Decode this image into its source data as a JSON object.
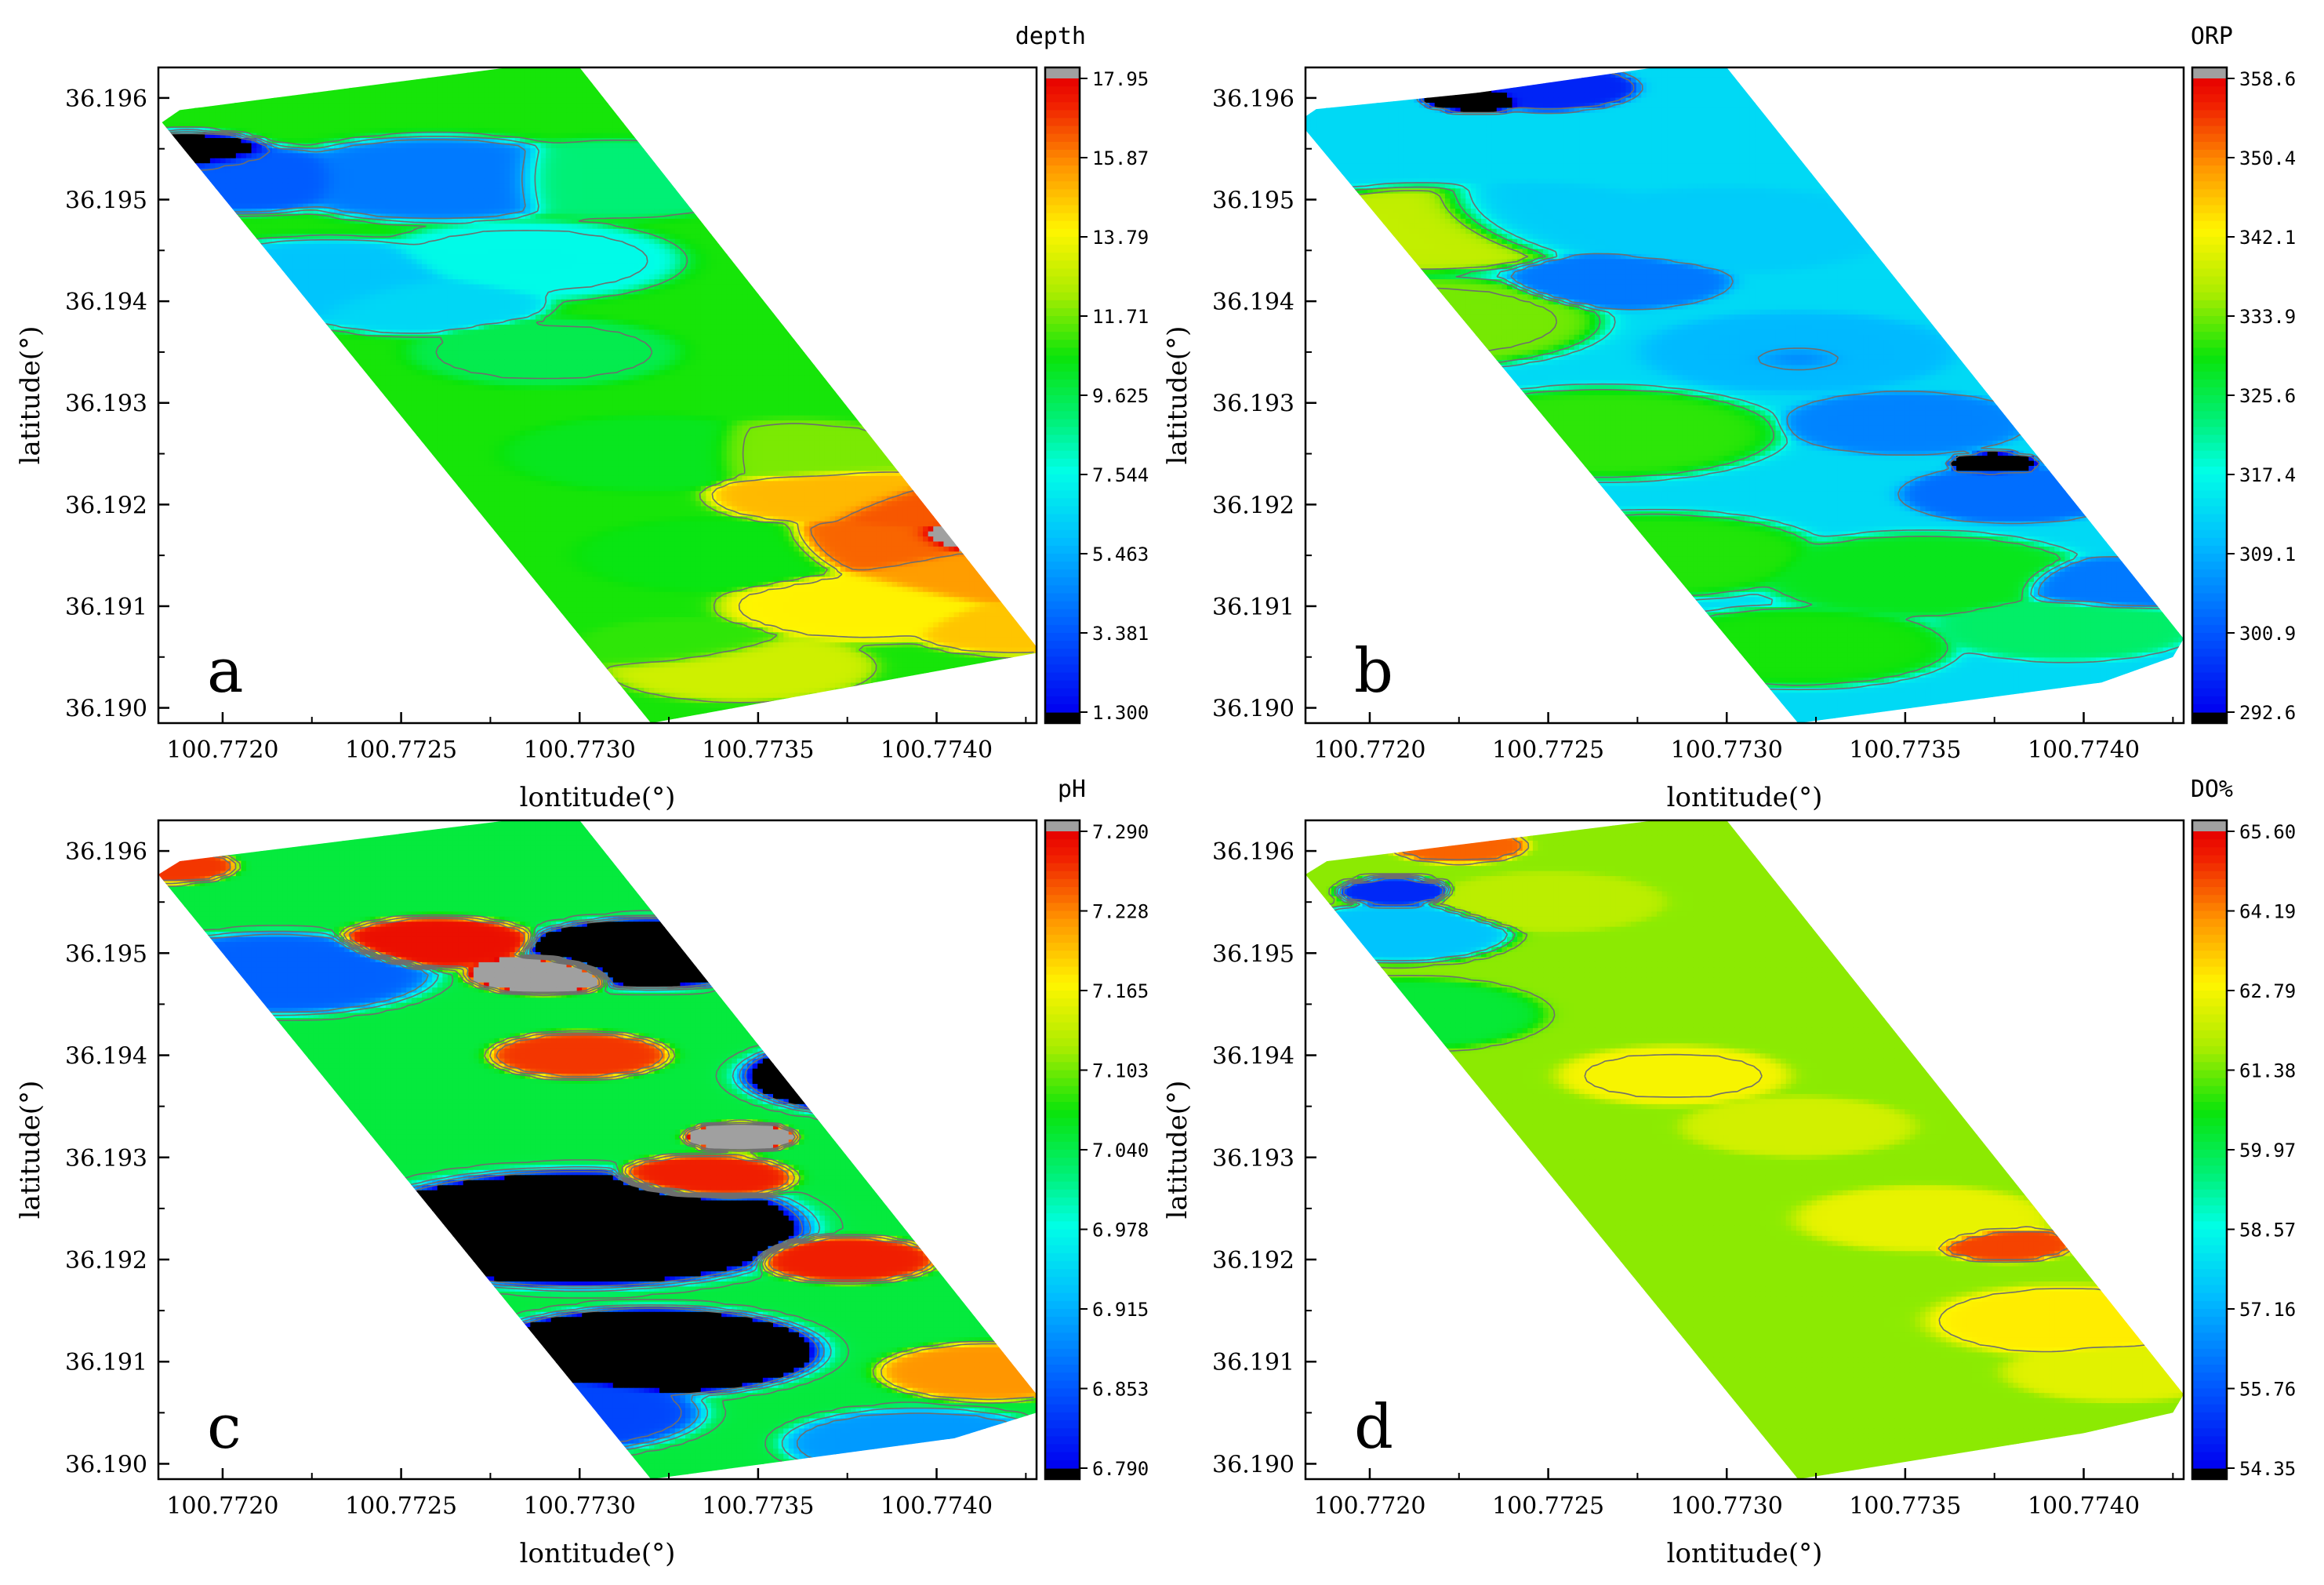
{
  "figure": {
    "colors": {
      "frame": "#000000",
      "contour": "#6e6e6e",
      "below": "#000000",
      "above": "#a0a0a0"
    },
    "x_axis_label": "lontitude(°)",
    "y_axis_label": "latitude(°)"
  },
  "chart_data": [
    {
      "type": "heatmap",
      "panel_label": "a",
      "title": "depth",
      "xlabel": "lontitude(°)",
      "ylabel": "latitude(°)",
      "xlim": [
        100.77182,
        100.77428
      ],
      "ylim": [
        36.18985,
        36.1963
      ],
      "x_ticks": [
        "100.7720",
        "100.7725",
        "100.7730",
        "100.7735",
        "100.7740"
      ],
      "y_ticks": [
        "36.196",
        "36.195",
        "36.194",
        "36.193",
        "36.192",
        "36.191",
        "36.190"
      ],
      "colorbar_ticks": [
        "17.95",
        "15.87",
        "13.79",
        "11.71",
        "9.625",
        "7.544",
        "5.463",
        "3.381",
        "1.300"
      ],
      "colorbar_range": [
        1.3,
        17.95
      ],
      "region": [
        [
          100.77183,
          36.19576
        ],
        [
          100.77188,
          36.19588
        ],
        [
          100.7728,
          36.1963
        ],
        [
          100.773,
          36.1963
        ],
        [
          100.77428,
          36.1906
        ],
        [
          100.77428,
          36.19054
        ],
        [
          100.7732,
          36.18985
        ]
      ],
      "field": [
        {
          "x": 100.7719,
          "y": 36.19545,
          "value": 1.0,
          "r": 8e-05
        },
        {
          "x": 100.77205,
          "y": 36.1952,
          "value": 3.5,
          "r": 0.00012
        },
        {
          "x": 100.7726,
          "y": 36.1952,
          "value": 4.2,
          "r": 0.00015
        },
        {
          "x": 100.7723,
          "y": 36.1942,
          "value": 6.0,
          "r": 0.00015
        },
        {
          "x": 100.77255,
          "y": 36.194,
          "value": 6.5,
          "r": 0.00012
        },
        {
          "x": 100.77285,
          "y": 36.1944,
          "value": 7.5,
          "r": 0.00014
        },
        {
          "x": 100.7731,
          "y": 36.1952,
          "value": 9.0,
          "r": 0.00014
        },
        {
          "x": 100.7729,
          "y": 36.1935,
          "value": 9.6,
          "r": 0.00012
        },
        {
          "x": 100.7732,
          "y": 36.1925,
          "value": 10.3,
          "r": 0.00013
        },
        {
          "x": 100.7734,
          "y": 36.1915,
          "value": 10.5,
          "r": 0.00013
        },
        {
          "x": 100.7733,
          "y": 36.1906,
          "value": 11.0,
          "r": 0.0001
        },
        {
          "x": 100.7736,
          "y": 36.1925,
          "value": 11.8,
          "r": 0.00012
        },
        {
          "x": 100.77345,
          "y": 36.1904,
          "value": 13.0,
          "r": 0.00012
        },
        {
          "x": 100.7738,
          "y": 36.191,
          "value": 14.0,
          "r": 0.00013
        },
        {
          "x": 100.7737,
          "y": 36.1921,
          "value": 15.0,
          "r": 0.00011
        },
        {
          "x": 100.77385,
          "y": 36.1916,
          "value": 16.3,
          "r": 0.00011
        },
        {
          "x": 100.77395,
          "y": 36.19195,
          "value": 16.5,
          "r": 0.0001
        },
        {
          "x": 100.7741,
          "y": 36.1913,
          "value": 15.5,
          "r": 0.00012
        },
        {
          "x": 100.77422,
          "y": 36.1908,
          "value": 14.8,
          "r": 0.0001
        },
        {
          "x": 100.77408,
          "y": 36.19168,
          "value": 19.0,
          "r": 7e-05
        }
      ]
    },
    {
      "type": "heatmap",
      "panel_label": "b",
      "title": "ORP",
      "xlabel": "lontitude(°)",
      "ylabel": "latitude(°)",
      "xlim": [
        100.77182,
        100.77428
      ],
      "ylim": [
        36.18985,
        36.1963
      ],
      "x_ticks": [
        "100.7720",
        "100.7725",
        "100.7730",
        "100.7735",
        "100.7740"
      ],
      "y_ticks": [
        "36.196",
        "36.195",
        "36.194",
        "36.193",
        "36.192",
        "36.191",
        "36.190"
      ],
      "colorbar_ticks": [
        "358.6",
        "350.4",
        "342.1",
        "333.9",
        "325.6",
        "317.4",
        "309.1",
        "300.9",
        "292.6"
      ],
      "colorbar_range": [
        292.6,
        358.6
      ],
      "region": [
        [
          100.7718,
          36.19577
        ],
        [
          100.77185,
          36.19589
        ],
        [
          100.7723,
          36.19605
        ],
        [
          100.7728,
          36.1963
        ],
        [
          100.773,
          36.1963
        ],
        [
          100.77428,
          36.19068
        ],
        [
          100.77425,
          36.1905
        ],
        [
          100.77405,
          36.19025
        ],
        [
          100.7732,
          36.18985
        ]
      ],
      "field": [
        {
          "x": 100.77215,
          "y": 36.1947,
          "value": 338.0,
          "r": 0.00015
        },
        {
          "x": 100.77215,
          "y": 36.1938,
          "value": 334.0,
          "r": 0.00016
        },
        {
          "x": 100.77265,
          "y": 36.1927,
          "value": 331.0,
          "r": 0.00016
        },
        {
          "x": 100.7728,
          "y": 36.1915,
          "value": 330.5,
          "r": 0.00015
        },
        {
          "x": 100.7732,
          "y": 36.1906,
          "value": 330.0,
          "r": 0.00014
        },
        {
          "x": 100.77355,
          "y": 36.1913,
          "value": 328.5,
          "r": 0.00015
        },
        {
          "x": 100.77395,
          "y": 36.1908,
          "value": 324.0,
          "r": 0.00012
        },
        {
          "x": 100.77245,
          "y": 36.1948,
          "value": 312.0,
          "r": 0.00013
        },
        {
          "x": 100.773,
          "y": 36.1947,
          "value": 312.0,
          "r": 0.00015
        },
        {
          "x": 100.7732,
          "y": 36.1935,
          "value": 310.0,
          "r": 0.00014
        },
        {
          "x": 100.7727,
          "y": 36.1942,
          "value": 304.0,
          "r": 0.0001
        },
        {
          "x": 100.7732,
          "y": 36.19345,
          "value": 303.0,
          "r": 7e-05
        },
        {
          "x": 100.7735,
          "y": 36.1928,
          "value": 305.0,
          "r": 0.00011
        },
        {
          "x": 100.7738,
          "y": 36.1921,
          "value": 303.0,
          "r": 0.0001
        },
        {
          "x": 100.77408,
          "y": 36.1912,
          "value": 304.0,
          "r": 0.0001
        },
        {
          "x": 100.77375,
          "y": 36.1924,
          "value": 288.0,
          "r": 4e-05
        },
        {
          "x": 100.7723,
          "y": 36.196,
          "value": 289.0,
          "r": 5e-05
        },
        {
          "x": 100.7725,
          "y": 36.1961,
          "value": 296.0,
          "r": 8e-05
        }
      ]
    },
    {
      "type": "heatmap",
      "panel_label": "c",
      "title": "pH",
      "xlabel": "lontitude(°)",
      "ylabel": "latitude(°)",
      "xlim": [
        100.77182,
        100.77428
      ],
      "ylim": [
        36.18985,
        36.1963
      ],
      "x_ticks": [
        "100.7720",
        "100.7725",
        "100.7730",
        "100.7735",
        "100.7740"
      ],
      "y_ticks": [
        "36.196",
        "36.195",
        "36.194",
        "36.193",
        "36.192",
        "36.191",
        "36.190"
      ],
      "colorbar_ticks": [
        "7.290",
        "7.228",
        "7.165",
        "7.103",
        "7.040",
        "6.978",
        "6.915",
        "6.853",
        "6.790"
      ],
      "colorbar_range": [
        6.79,
        7.29
      ],
      "region": [
        [
          100.77182,
          36.19577
        ],
        [
          100.77188,
          36.1959
        ],
        [
          100.7728,
          36.1963
        ],
        [
          100.773,
          36.1963
        ],
        [
          100.77428,
          36.19068
        ],
        [
          100.77428,
          36.1905
        ],
        [
          100.77405,
          36.19025
        ],
        [
          100.7732,
          36.18985
        ]
      ],
      "field": [
        {
          "x": 100.77185,
          "y": 36.19585,
          "value": 7.26,
          "r": 6e-05
        },
        {
          "x": 100.7726,
          "y": 36.1951,
          "value": 7.28,
          "r": 9e-05
        },
        {
          "x": 100.773,
          "y": 36.194,
          "value": 7.26,
          "r": 8e-05
        },
        {
          "x": 100.77335,
          "y": 36.1928,
          "value": 7.27,
          "r": 8e-05
        },
        {
          "x": 100.77375,
          "y": 36.192,
          "value": 7.27,
          "r": 8e-05
        },
        {
          "x": 100.77415,
          "y": 36.1909,
          "value": 7.22,
          "r": 0.0001
        },
        {
          "x": 100.7729,
          "y": 36.1948,
          "value": 7.33,
          "r": 7e-05
        },
        {
          "x": 100.77345,
          "y": 36.1932,
          "value": 7.33,
          "r": 5e-05
        },
        {
          "x": 100.773,
          "y": 36.1923,
          "value": 6.72,
          "r": 0.0002
        },
        {
          "x": 100.7732,
          "y": 36.1911,
          "value": 6.72,
          "r": 0.00015
        },
        {
          "x": 100.7732,
          "y": 36.195,
          "value": 6.72,
          "r": 0.00012
        },
        {
          "x": 100.7739,
          "y": 36.1938,
          "value": 6.72,
          "r": 0.00014
        },
        {
          "x": 100.77215,
          "y": 36.1948,
          "value": 6.86,
          "r": 0.00014
        },
        {
          "x": 100.7729,
          "y": 36.1905,
          "value": 6.84,
          "r": 0.00014
        },
        {
          "x": 100.77395,
          "y": 36.1902,
          "value": 6.9,
          "r": 0.00012
        }
      ]
    },
    {
      "type": "heatmap",
      "panel_label": "d",
      "title": "DO%",
      "xlabel": "lontitude(°)",
      "ylabel": "latitude(°)",
      "xlim": [
        100.77182,
        100.77428
      ],
      "ylim": [
        36.18985,
        36.1963
      ],
      "x_ticks": [
        "100.7720",
        "100.7725",
        "100.7730",
        "100.7735",
        "100.7740"
      ],
      "y_ticks": [
        "36.196",
        "36.195",
        "36.194",
        "36.193",
        "36.192",
        "36.191",
        "36.190"
      ],
      "colorbar_ticks": [
        "65.60",
        "64.19",
        "62.79",
        "61.38",
        "59.97",
        "58.57",
        "57.16",
        "55.76",
        "54.35"
      ],
      "colorbar_range": [
        54.35,
        65.6
      ],
      "region": [
        [
          100.77182,
          36.19577
        ],
        [
          100.77188,
          36.1959
        ],
        [
          100.7728,
          36.1963
        ],
        [
          100.773,
          36.1963
        ],
        [
          100.77428,
          36.19068
        ],
        [
          100.77425,
          36.1905
        ],
        [
          100.774,
          36.1903
        ],
        [
          100.7732,
          36.18985
        ]
      ],
      "field": [
        {
          "x": 100.77207,
          "y": 36.1956,
          "value": 55.0,
          "r": 5e-05
        },
        {
          "x": 100.77208,
          "y": 36.1952,
          "value": 57.5,
          "r": 0.0001
        },
        {
          "x": 100.77225,
          "y": 36.19605,
          "value": 64.5,
          "r": 6e-05
        },
        {
          "x": 100.7725,
          "y": 36.1955,
          "value": 62.0,
          "r": 0.0001
        },
        {
          "x": 100.7721,
          "y": 36.1944,
          "value": 60.2,
          "r": 0.00012
        },
        {
          "x": 100.77285,
          "y": 36.1938,
          "value": 62.8,
          "r": 0.0001
        },
        {
          "x": 100.7732,
          "y": 36.1933,
          "value": 62.3,
          "r": 0.0001
        },
        {
          "x": 100.77355,
          "y": 36.1924,
          "value": 62.6,
          "r": 0.00011
        },
        {
          "x": 100.77378,
          "y": 36.19215,
          "value": 64.8,
          "r": 6e-05
        },
        {
          "x": 100.77395,
          "y": 36.1914,
          "value": 63.0,
          "r": 0.00012
        },
        {
          "x": 100.7741,
          "y": 36.1909,
          "value": 62.5,
          "r": 0.0001
        }
      ]
    }
  ]
}
